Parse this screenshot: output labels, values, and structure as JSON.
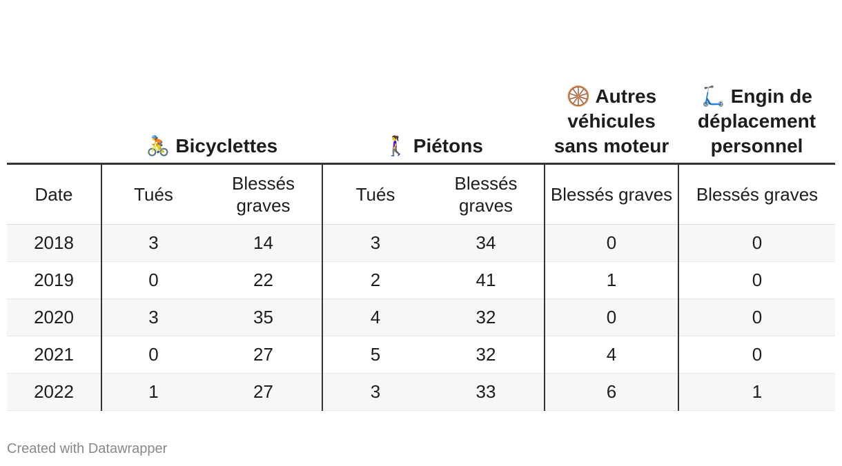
{
  "table": {
    "groups": [
      "🚴 Bicyclettes",
      "🚶‍♀️ Piétons",
      "🛞 Autres véhicules sans moteur",
      "🛴 Engin de déplacement personnel"
    ],
    "columns": [
      "Date",
      "Tués",
      "Blessés graves",
      "Tués",
      "Blessés graves",
      "Blessés graves",
      "Blessés graves"
    ],
    "rows": [
      [
        "2018",
        "3",
        "14",
        "3",
        "34",
        "0",
        "0"
      ],
      [
        "2019",
        "0",
        "22",
        "2",
        "41",
        "1",
        "0"
      ],
      [
        "2020",
        "3",
        "35",
        "4",
        "32",
        "0",
        "0"
      ],
      [
        "2021",
        "0",
        "27",
        "5",
        "32",
        "4",
        "0"
      ],
      [
        "2022",
        "1",
        "27",
        "3",
        "33",
        "6",
        "1"
      ]
    ]
  },
  "footer": "Created with Datawrapper"
}
